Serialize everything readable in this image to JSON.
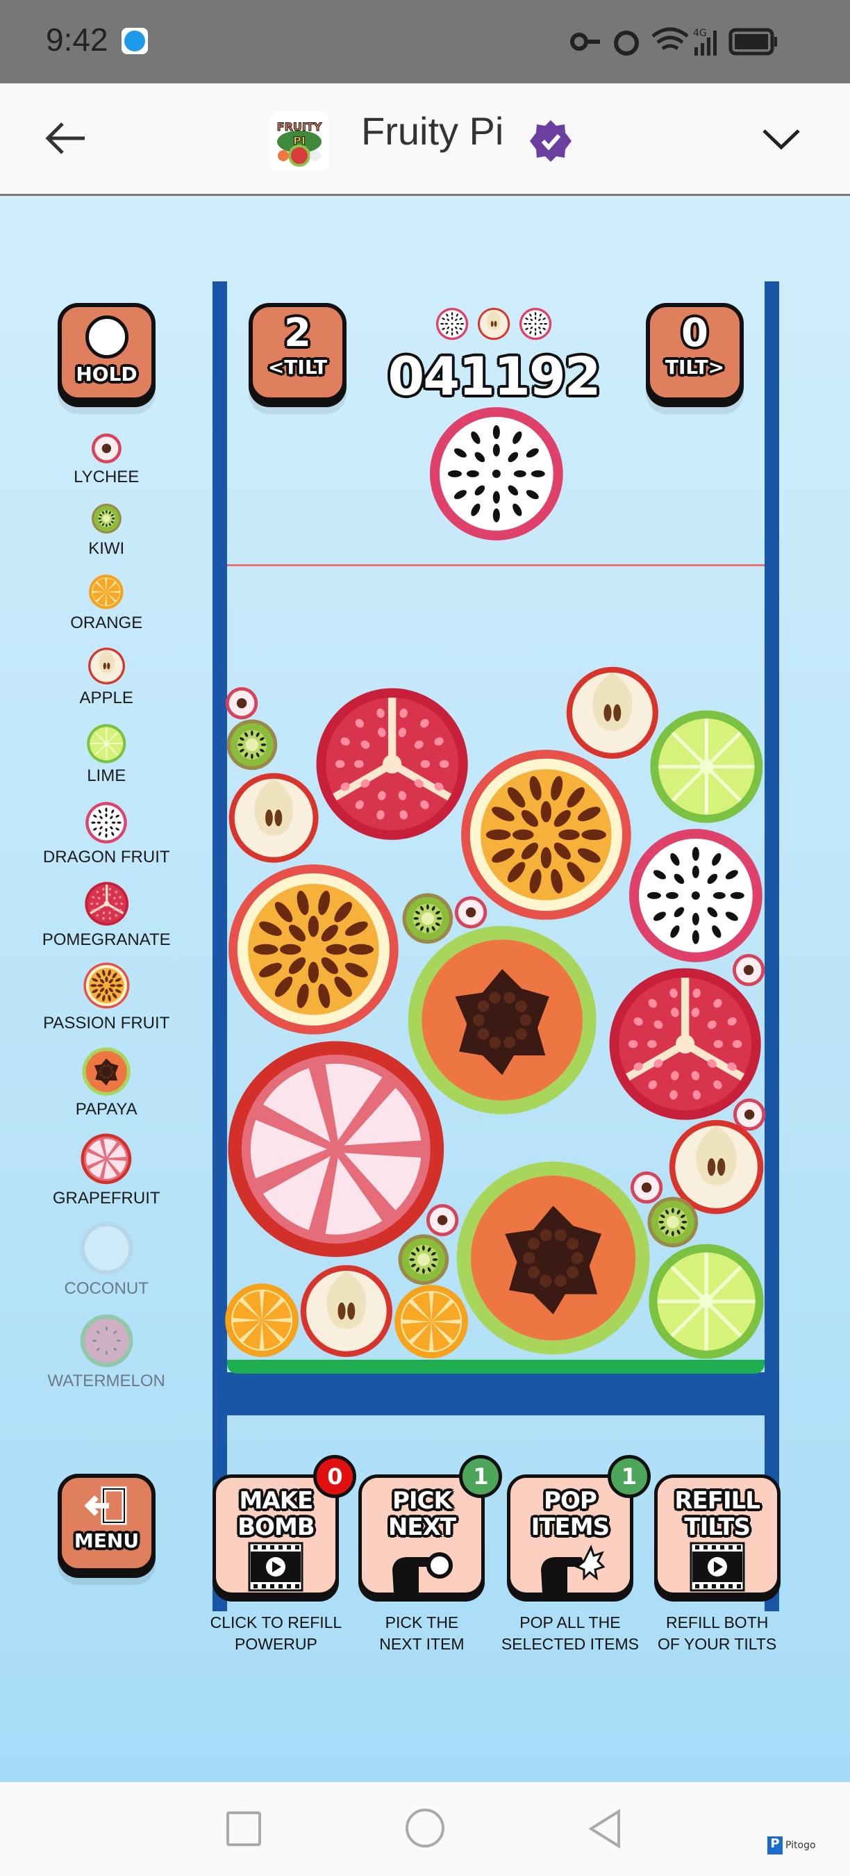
{
  "status_bar": {
    "time": "9:42",
    "icons": [
      "key-icon",
      "alarm-icon",
      "wifi-icon",
      "signal-4g-icon",
      "battery-icon"
    ]
  },
  "header": {
    "title": "Fruity Pi",
    "logo_text": "FRUITY PI",
    "verified_color": "#6b3fa0"
  },
  "game": {
    "hold_label": "HOLD",
    "tilt_left": {
      "count": "2",
      "label": "<TILT"
    },
    "tilt_right": {
      "count": "0",
      "label": "TILT>"
    },
    "score": "041192",
    "next_queue": [
      "dragon fruit",
      "apple",
      "dragon fruit"
    ],
    "current_drop": "dragon fruit",
    "legend": [
      {
        "label": "LYCHEE",
        "type": "lychee",
        "unlocked": true
      },
      {
        "label": "KIWI",
        "type": "kiwi",
        "unlocked": true
      },
      {
        "label": "ORANGE",
        "type": "orange",
        "unlocked": true
      },
      {
        "label": "APPLE",
        "type": "apple",
        "unlocked": true
      },
      {
        "label": "LIME",
        "type": "lime",
        "unlocked": true
      },
      {
        "label": "DRAGON FRUIT",
        "type": "dragon",
        "unlocked": true
      },
      {
        "label": "POMEGRANATE",
        "type": "pomegranate",
        "unlocked": true
      },
      {
        "label": "PASSION FRUIT",
        "type": "passion",
        "unlocked": true
      },
      {
        "label": "PAPAYA",
        "type": "papaya",
        "unlocked": true
      },
      {
        "label": "GRAPEFRUIT",
        "type": "grapefruit",
        "unlocked": true
      },
      {
        "label": "COCONUT",
        "type": "coconut",
        "unlocked": false
      },
      {
        "label": "WATERMELON",
        "type": "watermelon",
        "unlocked": false
      }
    ],
    "menu_label": "MENU",
    "powerups": [
      {
        "title1": "MAKE",
        "title2": "BOMB",
        "icon": "video-icon",
        "badge": "0",
        "badge_color": "#e01010",
        "desc1": "CLICK TO REFILL",
        "desc2": "POWERUP"
      },
      {
        "title1": "PICK",
        "title2": "NEXT",
        "icon": "pointing-hand-icon",
        "badge": "1",
        "badge_color": "#4ea65a",
        "desc1": "PICK THE",
        "desc2": "NEXT ITEM"
      },
      {
        "title1": "POP",
        "title2": "ITEMS",
        "icon": "pop-hand-icon",
        "badge": "1",
        "badge_color": "#4ea65a",
        "desc1": "POP ALL THE",
        "desc2": "SELECTED ITEMS"
      },
      {
        "title1": "REFILL",
        "title2": "TILTS",
        "icon": "video-icon",
        "badge": null,
        "desc1": "REFILL BOTH",
        "desc2": "OF YOUR TILTS"
      }
    ]
  },
  "nav": {
    "brand": "Pitogo"
  }
}
